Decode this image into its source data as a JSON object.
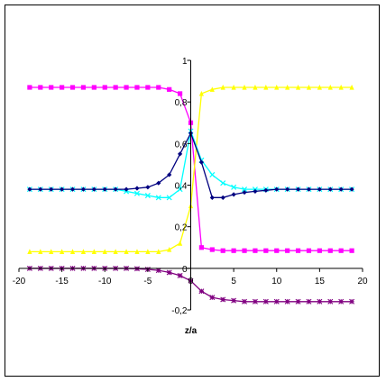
{
  "chart_data": {
    "type": "line",
    "title": "",
    "xlabel": "z/a",
    "ylabel": "",
    "xlim": [
      -20,
      20
    ],
    "ylim": [
      -0.2,
      1
    ],
    "xticks": [
      -20,
      -15,
      -10,
      -5,
      0,
      5,
      10,
      15,
      20
    ],
    "xtick_labels": [
      "-20",
      "-15",
      "-10",
      "-5",
      "0",
      "5",
      "10",
      "15",
      "20"
    ],
    "yticks": [
      -0.2,
      0,
      0.2,
      0.4,
      0.6,
      0.8,
      1
    ],
    "ytick_labels": [
      "-0,2",
      "0",
      "0,2",
      "0,4",
      "0,6",
      "0,8",
      "1"
    ],
    "grid": false,
    "legend": "none",
    "x": [
      -18.75,
      -17.5,
      -16.25,
      -15,
      -13.75,
      -12.5,
      -11.25,
      -10,
      -8.75,
      -7.5,
      -6.25,
      -5,
      -3.75,
      -2.5,
      -1.25,
      0,
      1.25,
      2.5,
      3.75,
      5,
      6.25,
      7.5,
      8.75,
      10,
      11.25,
      12.5,
      13.75,
      15,
      16.25,
      17.5,
      18.75
    ],
    "series": [
      {
        "color": "#ff00ff",
        "marker": "square",
        "values": [
          0.87,
          0.87,
          0.87,
          0.87,
          0.87,
          0.87,
          0.87,
          0.87,
          0.87,
          0.87,
          0.87,
          0.87,
          0.87,
          0.86,
          0.84,
          0.7,
          0.1,
          0.09,
          0.085,
          0.085,
          0.085,
          0.085,
          0.085,
          0.085,
          0.085,
          0.085,
          0.085,
          0.085,
          0.085,
          0.085,
          0.085
        ]
      },
      {
        "color": "#ffff00",
        "marker": "triangle",
        "values": [
          0.08,
          0.08,
          0.08,
          0.08,
          0.08,
          0.08,
          0.08,
          0.08,
          0.08,
          0.08,
          0.08,
          0.08,
          0.08,
          0.09,
          0.12,
          0.3,
          0.84,
          0.86,
          0.87,
          0.87,
          0.87,
          0.87,
          0.87,
          0.87,
          0.87,
          0.87,
          0.87,
          0.87,
          0.87,
          0.87,
          0.87
        ]
      },
      {
        "color": "#00ffff",
        "marker": "x",
        "values": [
          0.38,
          0.38,
          0.38,
          0.38,
          0.38,
          0.38,
          0.38,
          0.38,
          0.38,
          0.37,
          0.36,
          0.35,
          0.34,
          0.34,
          0.38,
          0.66,
          0.52,
          0.45,
          0.41,
          0.39,
          0.38,
          0.38,
          0.38,
          0.38,
          0.38,
          0.38,
          0.38,
          0.38,
          0.38,
          0.38,
          0.38
        ]
      },
      {
        "color": "#000080",
        "marker": "diamond",
        "values": [
          0.38,
          0.38,
          0.38,
          0.38,
          0.38,
          0.38,
          0.38,
          0.38,
          0.38,
          0.38,
          0.385,
          0.39,
          0.41,
          0.45,
          0.55,
          0.65,
          0.51,
          0.34,
          0.34,
          0.355,
          0.365,
          0.37,
          0.375,
          0.38,
          0.38,
          0.38,
          0.38,
          0.38,
          0.38,
          0.38,
          0.38
        ]
      },
      {
        "color": "#800080",
        "marker": "star",
        "values": [
          0,
          0,
          0,
          0,
          0,
          0,
          0,
          0,
          0,
          0,
          -0.002,
          -0.005,
          -0.01,
          -0.02,
          -0.035,
          -0.06,
          -0.11,
          -0.14,
          -0.15,
          -0.155,
          -0.16,
          -0.16,
          -0.16,
          -0.16,
          -0.16,
          -0.16,
          -0.16,
          -0.16,
          -0.16,
          -0.16,
          -0.16
        ]
      }
    ]
  }
}
